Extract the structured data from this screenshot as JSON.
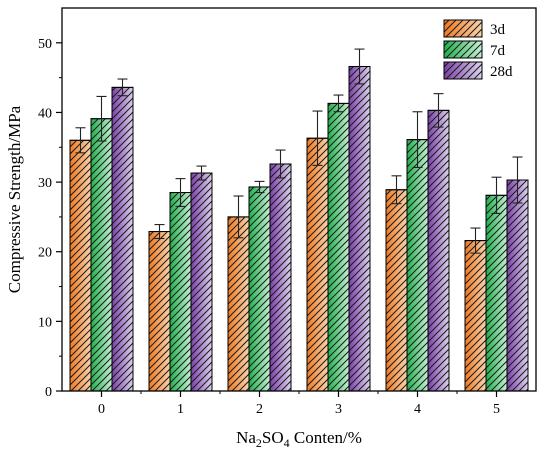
{
  "chart_data": {
    "type": "bar",
    "xlabel_parts": [
      "Na",
      "2",
      "SO",
      "4",
      " Conten/%"
    ],
    "ylabel": "Compressive Strength/MPa",
    "categories": [
      "0",
      "1",
      "2",
      "3",
      "4",
      "5"
    ],
    "ylim": [
      0,
      55
    ],
    "yticks": [
      0,
      10,
      20,
      30,
      40,
      50
    ],
    "legend_position": "top-right",
    "grid": false,
    "series": [
      {
        "name": "3d",
        "values": [
          36.0,
          22.9,
          25.0,
          36.3,
          28.9,
          21.6
        ],
        "errors": [
          1.8,
          1.0,
          3.0,
          3.9,
          2.0,
          1.8
        ],
        "color_light": "#f8d3ad",
        "color_dark": "#f07a20"
      },
      {
        "name": "7d",
        "values": [
          39.1,
          28.5,
          29.3,
          41.3,
          36.1,
          28.1
        ],
        "errors": [
          3.2,
          2.0,
          0.8,
          1.2,
          4.0,
          2.6
        ],
        "color_light": "#c6efd2",
        "color_dark": "#1fb04e"
      },
      {
        "name": "28d",
        "values": [
          43.6,
          31.3,
          32.6,
          46.6,
          40.3,
          30.3
        ],
        "errors": [
          1.2,
          1.0,
          2.0,
          2.5,
          2.4,
          3.3
        ],
        "color_light": "#dcd3ec",
        "color_dark": "#7a3fa8"
      }
    ]
  }
}
